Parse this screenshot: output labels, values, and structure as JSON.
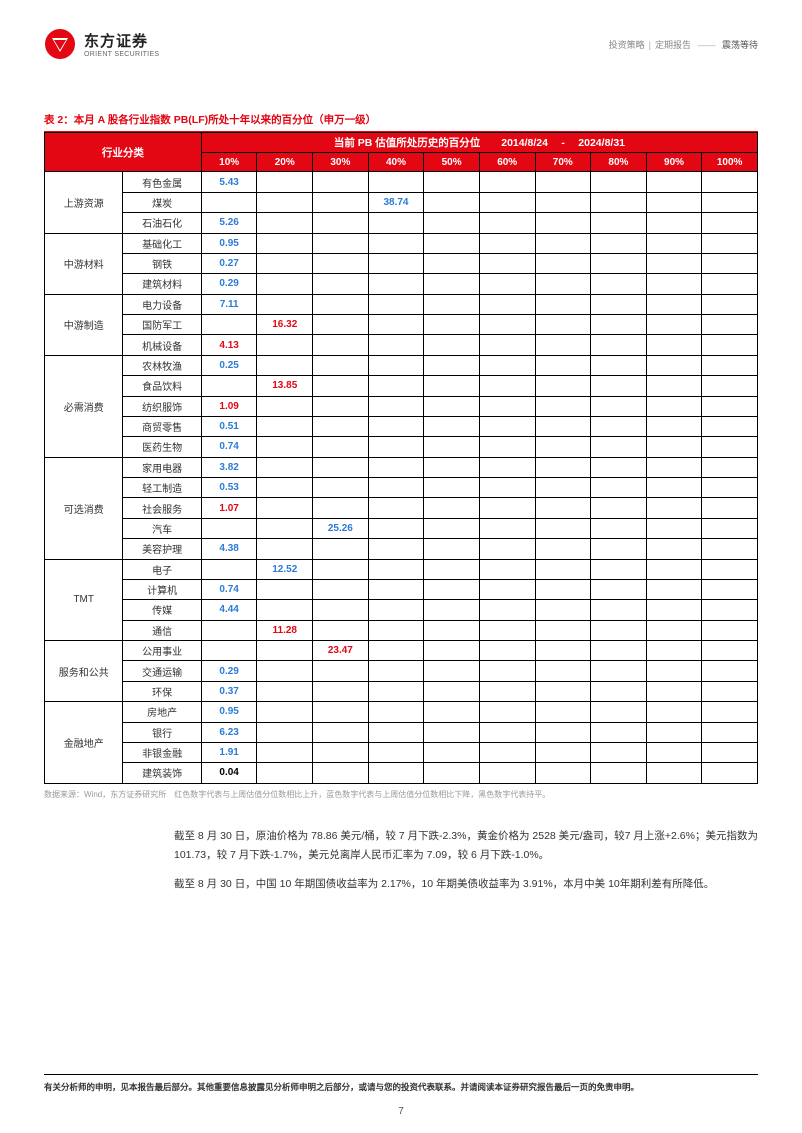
{
  "header": {
    "company_cn": "东方证券",
    "company_en": "ORIENT SECURITIES",
    "breadcrumb_1": "投资策略",
    "breadcrumb_2": "定期报告",
    "breadcrumb_title": "震荡等待"
  },
  "table": {
    "caption": "表 2：本月 A 股各行业指数 PB(LF)所处十年以来的百分位（申万一级）",
    "header_category": "行业分类",
    "header_merge": "当前 PB 估值所处历史的百分位　　2014/8/24　 - 　2024/8/31",
    "percent_labels": [
      "10%",
      "20%",
      "30%",
      "40%",
      "50%",
      "60%",
      "70%",
      "80%",
      "90%",
      "100%"
    ],
    "colors": {
      "header_bg": "#e30613",
      "header_fg": "#ffffff",
      "border": "#000000",
      "val_blue": "#2a7bd6",
      "val_red": "#e30613",
      "val_black": "#000000"
    },
    "groups": [
      {
        "category": "上游资源",
        "rows": [
          {
            "industry": "有色金属",
            "col": 0,
            "value": "5.43",
            "style": "blue"
          },
          {
            "industry": "煤炭",
            "col": 3,
            "value": "38.74",
            "style": "blue"
          },
          {
            "industry": "石油石化",
            "col": 0,
            "value": "5.26",
            "style": "blue"
          }
        ]
      },
      {
        "category": "中游材料",
        "rows": [
          {
            "industry": "基础化工",
            "col": 0,
            "value": "0.95",
            "style": "blue"
          },
          {
            "industry": "钢铁",
            "col": 0,
            "value": "0.27",
            "style": "blue"
          },
          {
            "industry": "建筑材料",
            "col": 0,
            "value": "0.29",
            "style": "blue"
          }
        ]
      },
      {
        "category": "中游制造",
        "rows": [
          {
            "industry": "电力设备",
            "col": 0,
            "value": "7.11",
            "style": "blue"
          },
          {
            "industry": "国防军工",
            "col": 1,
            "value": "16.32",
            "style": "red"
          },
          {
            "industry": "机械设备",
            "col": 0,
            "value": "4.13",
            "style": "red"
          }
        ]
      },
      {
        "category": "必需消费",
        "rows": [
          {
            "industry": "农林牧渔",
            "col": 0,
            "value": "0.25",
            "style": "blue"
          },
          {
            "industry": "食品饮料",
            "col": 1,
            "value": "13.85",
            "style": "red"
          },
          {
            "industry": "纺织服饰",
            "col": 0,
            "value": "1.09",
            "style": "red"
          },
          {
            "industry": "商贸零售",
            "col": 0,
            "value": "0.51",
            "style": "blue"
          },
          {
            "industry": "医药生物",
            "col": 0,
            "value": "0.74",
            "style": "blue"
          }
        ]
      },
      {
        "category": "可选消费",
        "rows": [
          {
            "industry": "家用电器",
            "col": 0,
            "value": "3.82",
            "style": "blue"
          },
          {
            "industry": "轻工制造",
            "col": 0,
            "value": "0.53",
            "style": "blue"
          },
          {
            "industry": "社会服务",
            "col": 0,
            "value": "1.07",
            "style": "red"
          },
          {
            "industry": "汽车",
            "col": 2,
            "value": "25.26",
            "style": "blue"
          },
          {
            "industry": "美容护理",
            "col": 0,
            "value": "4.38",
            "style": "blue"
          }
        ]
      },
      {
        "category": "TMT",
        "rows": [
          {
            "industry": "电子",
            "col": 1,
            "value": "12.52",
            "style": "blue"
          },
          {
            "industry": "计算机",
            "col": 0,
            "value": "0.74",
            "style": "blue"
          },
          {
            "industry": "传媒",
            "col": 0,
            "value": "4.44",
            "style": "blue"
          },
          {
            "industry": "通信",
            "col": 1,
            "value": "11.28",
            "style": "red"
          }
        ]
      },
      {
        "category": "服务和公共",
        "rows": [
          {
            "industry": "公用事业",
            "col": 2,
            "value": "23.47",
            "style": "red"
          },
          {
            "industry": "交通运输",
            "col": 0,
            "value": "0.29",
            "style": "blue"
          },
          {
            "industry": "环保",
            "col": 0,
            "value": "0.37",
            "style": "blue"
          }
        ]
      },
      {
        "category": "金融地产",
        "rows": [
          {
            "industry": "房地产",
            "col": 0,
            "value": "0.95",
            "style": "blue"
          },
          {
            "industry": "银行",
            "col": 0,
            "value": "6.23",
            "style": "blue"
          },
          {
            "industry": "非银金融",
            "col": 0,
            "value": "1.91",
            "style": "blue"
          },
          {
            "industry": "建筑装饰",
            "col": 0,
            "value": "0.04",
            "style": "black"
          }
        ]
      }
    ],
    "source_note": "数据来源：Wind，东方证券研究所　红色数字代表与上周估值分位数相比上升，蓝色数字代表与上周估值分位数相比下降，黑色数字代表持平。"
  },
  "paragraphs": [
    "截至 8 月 30 日，原油价格为 78.86 美元/桶，较 7 月下跌-2.3%，黄金价格为 2528 美元/盎司，较7 月上涨+2.6%；美元指数为 101.73，较 7 月下跌-1.7%，美元兑离岸人民币汇率为 7.09，较 6 月下跌-1.0%。",
    "截至 8 月 30 日，中国 10 年期国债收益率为 2.17%，10 年期美债收益率为 3.91%，本月中美 10年期利差有所降低。"
  ],
  "footer": {
    "disclaimer": "有关分析师的申明，见本报告最后部分。其他重要信息披露见分析师申明之后部分，或请与您的投资代表联系。并请阅读本证券研究报告最后一页的免责申明。",
    "page": "7"
  }
}
